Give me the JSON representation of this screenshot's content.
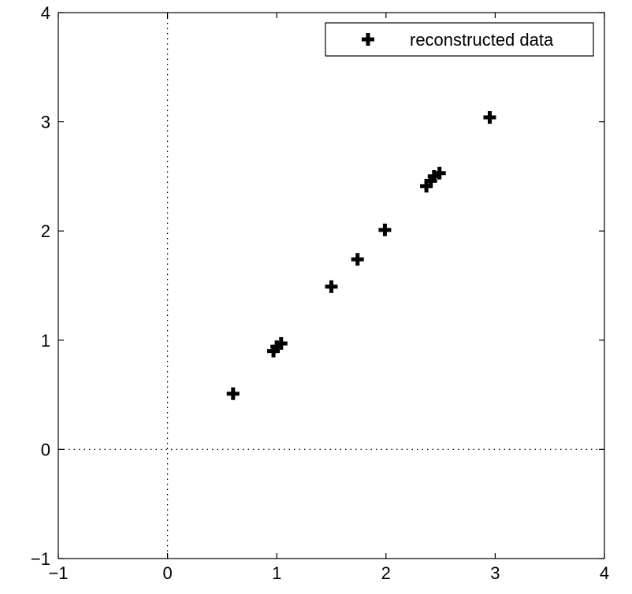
{
  "chart_data": {
    "type": "scatter",
    "title": "",
    "xlabel": "",
    "ylabel": "",
    "xlim": [
      -1,
      4
    ],
    "ylim": [
      -1,
      4
    ],
    "xticks": [
      -1,
      0,
      1,
      2,
      3,
      4
    ],
    "yticks": [
      -1,
      0,
      1,
      2,
      3,
      4
    ],
    "xtick_labels": [
      "−1",
      "0",
      "1",
      "2",
      "3",
      "4"
    ],
    "ytick_labels": [
      "−1",
      "0",
      "1",
      "2",
      "3",
      "4"
    ],
    "grid": false,
    "reference_lines": {
      "x0": "dotted",
      "y0": "dotted"
    },
    "legend": {
      "position": "top-right",
      "entries": [
        "reconstructed data"
      ]
    },
    "marker": "plus",
    "marker_color": "#000000",
    "series": [
      {
        "name": "reconstructed data",
        "x": [
          0.6,
          0.97,
          1.0,
          1.04,
          1.5,
          1.74,
          1.99,
          2.37,
          2.41,
          2.44,
          2.49,
          2.95
        ],
        "y": [
          0.51,
          0.9,
          0.94,
          0.97,
          1.49,
          1.74,
          2.01,
          2.41,
          2.46,
          2.5,
          2.53,
          3.04
        ]
      }
    ]
  }
}
